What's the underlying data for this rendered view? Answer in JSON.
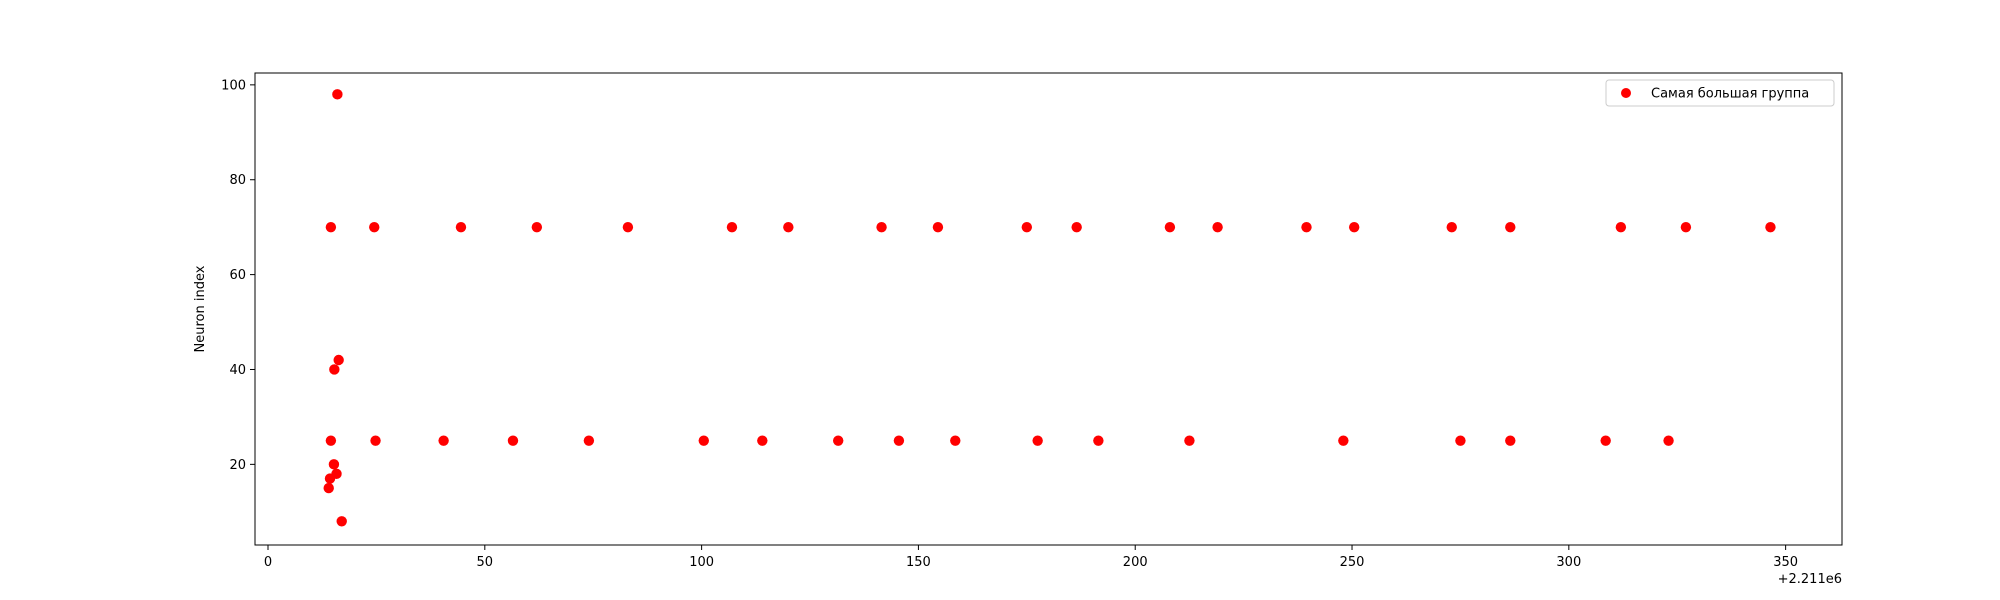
{
  "chart_data": {
    "type": "scatter",
    "title": "",
    "xlabel": "",
    "ylabel": "Neuron index",
    "x_offset_label": "+2.211e6",
    "xlim": [
      -3,
      363
    ],
    "ylim": [
      3,
      102.5
    ],
    "xticks": [
      0,
      50,
      100,
      150,
      200,
      250,
      300,
      350
    ],
    "yticks": [
      20,
      40,
      60,
      80,
      100
    ],
    "grid": false,
    "legend_position": "upper right",
    "series": [
      {
        "name": "Самая большая группа",
        "color": "#ff0000",
        "points": [
          {
            "x": 14.0,
            "y": 15
          },
          {
            "x": 14.3,
            "y": 17
          },
          {
            "x": 14.5,
            "y": 25
          },
          {
            "x": 14.5,
            "y": 70
          },
          {
            "x": 15.2,
            "y": 20
          },
          {
            "x": 15.3,
            "y": 40
          },
          {
            "x": 15.8,
            "y": 18
          },
          {
            "x": 16.0,
            "y": 98
          },
          {
            "x": 16.3,
            "y": 42
          },
          {
            "x": 17.0,
            "y": 8
          },
          {
            "x": 24.5,
            "y": 70
          },
          {
            "x": 24.8,
            "y": 25
          },
          {
            "x": 40.5,
            "y": 25
          },
          {
            "x": 44.5,
            "y": 70
          },
          {
            "x": 56.5,
            "y": 25
          },
          {
            "x": 62.0,
            "y": 70
          },
          {
            "x": 74.0,
            "y": 25
          },
          {
            "x": 83.0,
            "y": 70
          },
          {
            "x": 100.5,
            "y": 25
          },
          {
            "x": 107.0,
            "y": 70
          },
          {
            "x": 114.0,
            "y": 25
          },
          {
            "x": 120.0,
            "y": 70
          },
          {
            "x": 131.5,
            "y": 25
          },
          {
            "x": 141.5,
            "y": 70
          },
          {
            "x": 145.5,
            "y": 25
          },
          {
            "x": 154.5,
            "y": 70
          },
          {
            "x": 158.5,
            "y": 25
          },
          {
            "x": 175.0,
            "y": 70
          },
          {
            "x": 177.5,
            "y": 25
          },
          {
            "x": 186.5,
            "y": 70
          },
          {
            "x": 191.5,
            "y": 25
          },
          {
            "x": 208.0,
            "y": 70
          },
          {
            "x": 212.5,
            "y": 25
          },
          {
            "x": 219.0,
            "y": 70
          },
          {
            "x": 239.5,
            "y": 70
          },
          {
            "x": 248.0,
            "y": 25
          },
          {
            "x": 250.5,
            "y": 70
          },
          {
            "x": 273.0,
            "y": 70
          },
          {
            "x": 275.0,
            "y": 25
          },
          {
            "x": 286.5,
            "y": 25
          },
          {
            "x": 286.5,
            "y": 70
          },
          {
            "x": 308.5,
            "y": 25
          },
          {
            "x": 312.0,
            "y": 70
          },
          {
            "x": 323.0,
            "y": 25
          },
          {
            "x": 327.0,
            "y": 70
          },
          {
            "x": 346.5,
            "y": 70
          }
        ]
      }
    ]
  }
}
